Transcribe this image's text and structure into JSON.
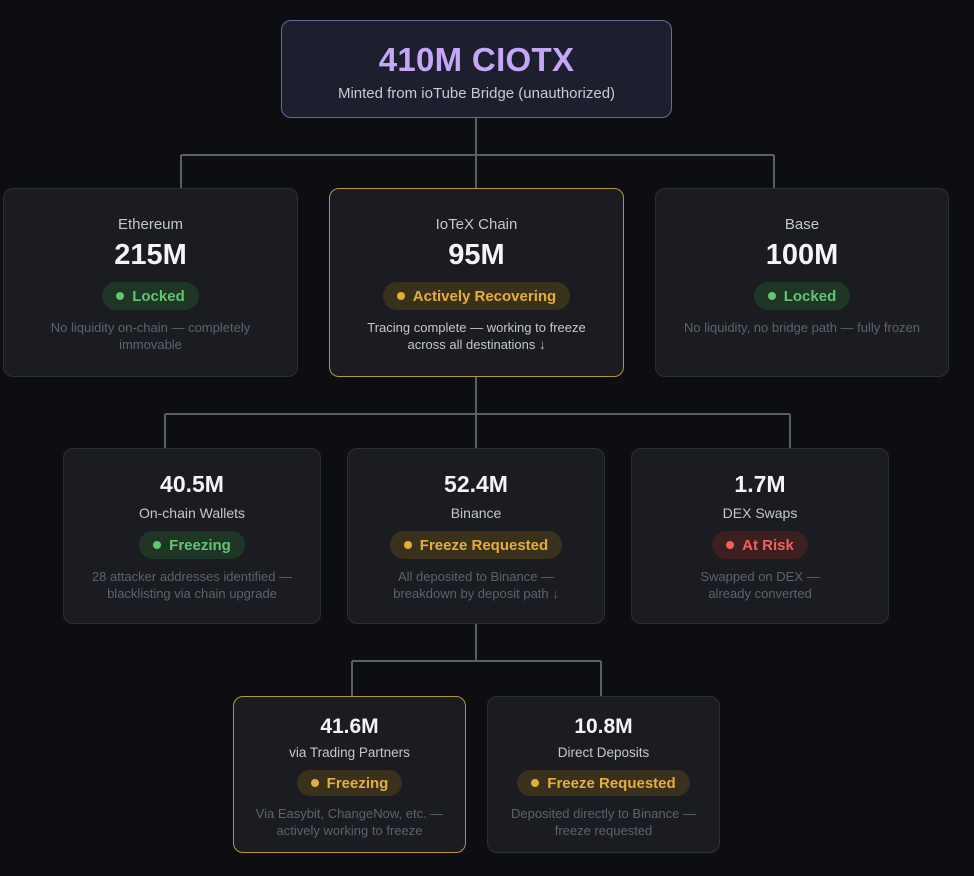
{
  "root": {
    "amount": "410M CIOTX",
    "description": "Minted from ioTube Bridge (unauthorized)"
  },
  "chains": {
    "ethereum": {
      "name": "Ethereum",
      "amount": "215M",
      "status": "Locked",
      "status_color": "#63c471",
      "note": "No liquidity on-chain — completely immovable"
    },
    "iotex": {
      "name": "IoTeX Chain",
      "amount": "95M",
      "status": "Actively Recovering",
      "status_color": "#e5ad3e",
      "note": "Tracing complete — working to freeze across all destinations ↓"
    },
    "base": {
      "name": "Base",
      "amount": "100M",
      "status": "Locked",
      "status_color": "#63c471",
      "note": "No liquidity, no bridge path — fully frozen"
    }
  },
  "iotex_breakdown": {
    "wallets": {
      "amount": "40.5M",
      "label": "On-chain Wallets",
      "status": "Freezing",
      "status_color": "#63c471",
      "note": "28 attacker addresses identified — blacklisting via chain upgrade"
    },
    "binance": {
      "amount": "52.4M",
      "label": "Binance",
      "status": "Freeze Requested",
      "status_color": "#e5ad3e",
      "note": "All deposited to Binance — breakdown by deposit path ↓"
    },
    "dex": {
      "amount": "1.7M",
      "label": "DEX Swaps",
      "status": "At Risk",
      "status_color": "#f0625c",
      "note": "Swapped on DEX — already converted"
    }
  },
  "binance_breakdown": {
    "partners": {
      "amount": "41.6M",
      "label": "via Trading Partners",
      "status": "Freezing",
      "status_color": "#e5ad3e",
      "note": "Via Easybit, ChangeNow, etc. — actively working to freeze"
    },
    "direct": {
      "amount": "10.8M",
      "label": "Direct Deposits",
      "status": "Freeze Requested",
      "status_color": "#e5ad3e",
      "note": "Deposited directly to Binance — freeze requested"
    }
  },
  "colors": {
    "connector": "#5b5e66",
    "highlight_border": "#b8943a",
    "root_text": "#c6a6f6"
  }
}
